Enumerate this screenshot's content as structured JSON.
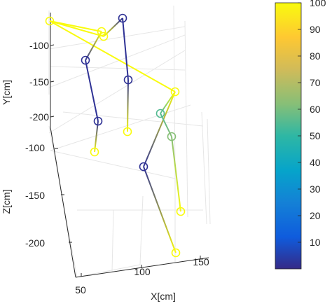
{
  "chart_data": {
    "type": "scatter3d",
    "title": "",
    "xlabel": "X[cm]",
    "ylabel": "Y[cm]",
    "zlabel": "Z[cm]",
    "x_ticks": [
      "50",
      "100",
      "150"
    ],
    "y_ticks": [
      "-100",
      "-150",
      "-200"
    ],
    "z_ticks": [
      "-100",
      "-150",
      "-200"
    ],
    "grid": true,
    "colormap": "parula",
    "colorbar": {
      "range": [
        0,
        100
      ],
      "ticks": [
        "10",
        "20",
        "30",
        "40",
        "50",
        "60",
        "70",
        "80",
        "90",
        "100"
      ]
    },
    "joints": [
      {
        "id": "head",
        "value": 100
      },
      {
        "id": "neck",
        "value": 100
      },
      {
        "id": "r-shoulder",
        "value": 100
      },
      {
        "id": "l-shoulder",
        "value": 2
      },
      {
        "id": "r-elbow",
        "value": 2
      },
      {
        "id": "r-wrist",
        "value": 2
      },
      {
        "id": "r-hand",
        "value": 100
      },
      {
        "id": "l-elbow",
        "value": 2
      },
      {
        "id": "l-hand",
        "value": 100
      },
      {
        "id": "hip-r",
        "value": 100
      },
      {
        "id": "hip-l",
        "value": 55
      },
      {
        "id": "knee-r",
        "value": 2
      },
      {
        "id": "ankle-r",
        "value": 100
      },
      {
        "id": "knee-l",
        "value": 62
      },
      {
        "id": "ankle-l",
        "value": 100
      }
    ],
    "bones": [
      [
        "head",
        "neck"
      ],
      [
        "head",
        "r-shoulder"
      ],
      [
        "head",
        "hip-r"
      ],
      [
        "neck",
        "r-elbow"
      ],
      [
        "r-shoulder",
        "l-shoulder"
      ],
      [
        "r-elbow",
        "r-wrist"
      ],
      [
        "r-wrist",
        "r-hand"
      ],
      [
        "l-shoulder",
        "l-elbow"
      ],
      [
        "l-elbow",
        "l-hand"
      ],
      [
        "hip-r",
        "hip-l"
      ],
      [
        "hip-r",
        "knee-r"
      ],
      [
        "knee-r",
        "ankle-r"
      ],
      [
        "hip-l",
        "knee-l"
      ],
      [
        "knee-l",
        "ankle-l"
      ]
    ]
  }
}
